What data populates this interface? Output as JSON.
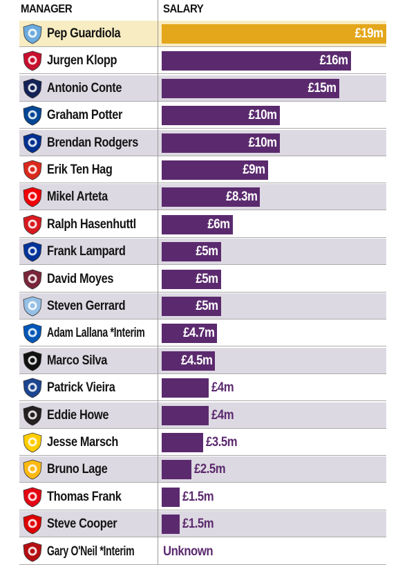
{
  "headers": {
    "manager": "MANAGER",
    "salary": "SALARY"
  },
  "colors": {
    "bar": "#5b2a6e",
    "top_bar": "#e4a61a",
    "row_alt": "#ddd9e2",
    "row_top": "#f8ecc2"
  },
  "chart_data": {
    "type": "bar",
    "orientation": "horizontal",
    "unit": "£m",
    "columns": [
      "MANAGER",
      "SALARY"
    ],
    "categories": [
      "Pep Guardiola",
      "Jurgen Klopp",
      "Antonio Conte",
      "Graham Potter",
      "Brendan Rodgers",
      "Erik Ten Hag",
      "Mikel Arteta",
      "Ralph Hasenhuttl",
      "Frank Lampard",
      "David Moyes",
      "Steven Gerrard",
      "Adam Lallana *Interim",
      "Marco Silva",
      "Patrick Vieira",
      "Eddie Howe",
      "Jesse Marsch",
      "Bruno Lage",
      "Thomas Frank",
      "Steve Cooper",
      "Gary O'Neil *Interim"
    ],
    "values": [
      19,
      16,
      15,
      10,
      10,
      9,
      8.3,
      6,
      5,
      5,
      5,
      4.7,
      4.5,
      4,
      4,
      3.5,
      2.5,
      1.5,
      1.5,
      null
    ],
    "labels": [
      "£19m",
      "£16m",
      "£15m",
      "£10m",
      "£10m",
      "£9m",
      "£8.3m",
      "£6m",
      "£5m",
      "£5m",
      "£5m",
      "£4.7m",
      "£4.5m",
      "£4m",
      "£4m",
      "£3.5m",
      "£2.5m",
      "£1.5m",
      "£1.5m",
      "Unknown"
    ],
    "crests": [
      "man-city-crest-icon",
      "liverpool-crest-icon",
      "tottenham-crest-icon",
      "chelsea-crest-icon",
      "leicester-crest-icon",
      "man-united-crest-icon",
      "arsenal-crest-icon",
      "southampton-crest-icon",
      "everton-crest-icon",
      "west-ham-crest-icon",
      "aston-villa-crest-icon",
      "brighton-crest-icon",
      "fulham-crest-icon",
      "crystal-palace-crest-icon",
      "newcastle-crest-icon",
      "leeds-crest-icon",
      "wolves-crest-icon",
      "brentford-crest-icon",
      "nottingham-forest-crest-icon",
      "bournemouth-crest-icon"
    ],
    "crest_colors": [
      "#6cabdd",
      "#c8102e",
      "#132257",
      "#034694",
      "#003090",
      "#da291c",
      "#ef0107",
      "#d71920",
      "#003399",
      "#7a263a",
      "#95bfe5",
      "#0057b8",
      "#111111",
      "#1b458f",
      "#241f20",
      "#ffcd00",
      "#fdb913",
      "#e30613",
      "#dd0000",
      "#b50e12"
    ],
    "xlim": [
      0,
      19
    ]
  }
}
